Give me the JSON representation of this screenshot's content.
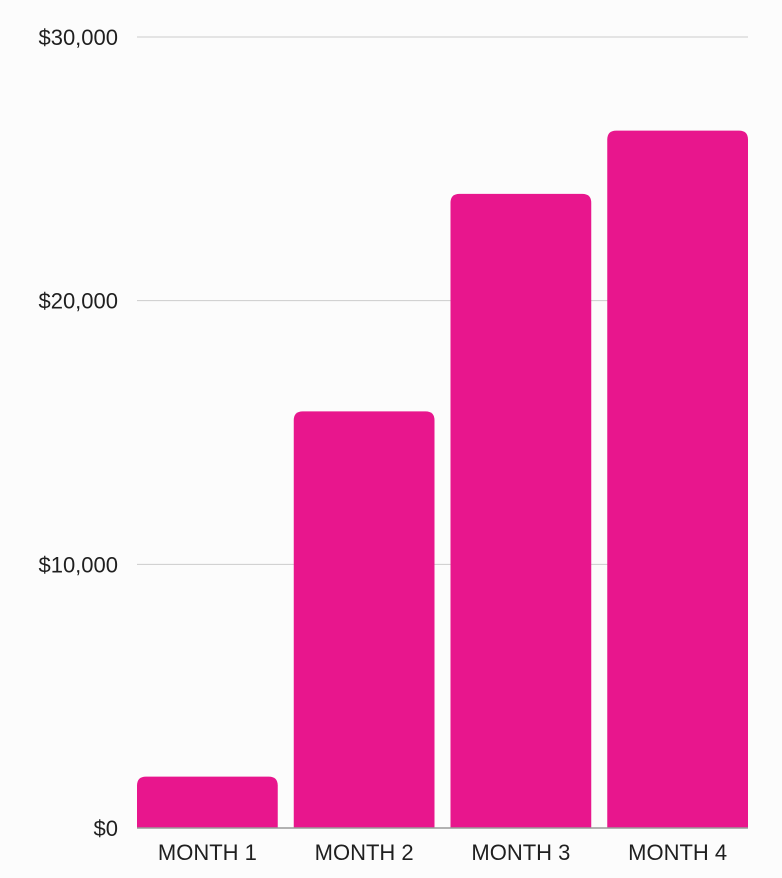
{
  "chart_data": {
    "type": "bar",
    "title": "",
    "xlabel": "",
    "ylabel": "",
    "categories": [
      "MONTH 1",
      "MONTH 2",
      "MONTH 3",
      "MONTH 4"
    ],
    "values": [
      1950,
      15800,
      24050,
      26450
    ],
    "ylim": [
      0,
      30000
    ],
    "yticks": [
      0,
      10000,
      20000,
      30000
    ],
    "ytick_labels": [
      "$0",
      "$10,000",
      "$20,000",
      "$30,000"
    ],
    "grid": true,
    "legend": "none",
    "bar_color": "#e8168d",
    "grid_color": "#cccccc",
    "axis_color": "#9a9a9a"
  }
}
